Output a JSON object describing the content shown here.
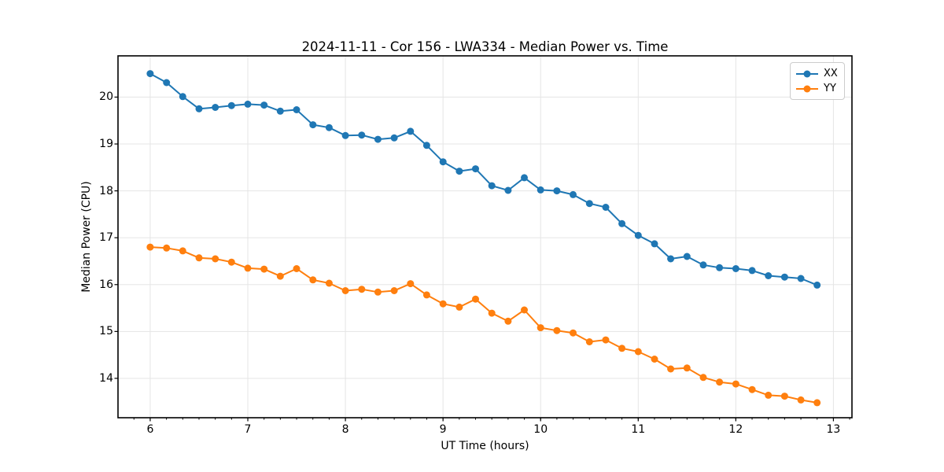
{
  "chart_data": {
    "type": "line",
    "title": "2024-11-11 - Cor 156 - LWA334 - Median Power vs. Time",
    "xlabel": "UT Time (hours)",
    "ylabel": "Median Power (CPU)",
    "xlim": [
      5.67,
      13.19
    ],
    "ylim": [
      13.16,
      20.88
    ],
    "x_ticks": [
      6,
      7,
      8,
      9,
      10,
      11,
      12,
      13
    ],
    "y_ticks": [
      14,
      15,
      16,
      17,
      18,
      19,
      20
    ],
    "x_minor_step": 0.1666667,
    "grid": true,
    "grid_color": "#e5e5e5",
    "legend_position": "upper right",
    "x": [
      6.0,
      6.167,
      6.333,
      6.5,
      6.667,
      6.833,
      7.0,
      7.167,
      7.333,
      7.5,
      7.667,
      7.833,
      8.0,
      8.167,
      8.333,
      8.5,
      8.667,
      8.833,
      9.0,
      9.167,
      9.333,
      9.5,
      9.667,
      9.833,
      10.0,
      10.167,
      10.333,
      10.5,
      10.667,
      10.833,
      11.0,
      11.167,
      11.333,
      11.5,
      11.667,
      11.833,
      12.0,
      12.167,
      12.333,
      12.5,
      12.667,
      12.833
    ],
    "series": [
      {
        "name": "XX",
        "color": "#1f77b4",
        "values": [
          20.5,
          20.31,
          20.01,
          19.75,
          19.78,
          19.82,
          19.85,
          19.83,
          19.7,
          19.73,
          19.41,
          19.35,
          19.18,
          19.19,
          19.1,
          19.13,
          19.27,
          18.97,
          18.62,
          18.42,
          18.47,
          18.11,
          18.01,
          18.28,
          18.02,
          18.0,
          17.92,
          17.73,
          17.65,
          17.3,
          17.05,
          16.87,
          16.55,
          16.6,
          16.42,
          16.36,
          16.34,
          16.3,
          16.19,
          16.16,
          16.13,
          15.99
        ]
      },
      {
        "name": "YY",
        "color": "#ff7f0e",
        "values": [
          16.8,
          16.78,
          16.72,
          16.57,
          16.55,
          16.48,
          16.35,
          16.33,
          16.18,
          16.34,
          16.1,
          16.03,
          15.87,
          15.9,
          15.84,
          15.87,
          16.02,
          15.78,
          15.59,
          15.52,
          15.69,
          15.39,
          15.22,
          15.46,
          15.08,
          15.02,
          14.97,
          14.78,
          14.82,
          14.64,
          14.57,
          14.41,
          14.2,
          14.22,
          14.02,
          13.92,
          13.88,
          13.76,
          13.64,
          13.62,
          13.54,
          13.48
        ]
      }
    ]
  }
}
